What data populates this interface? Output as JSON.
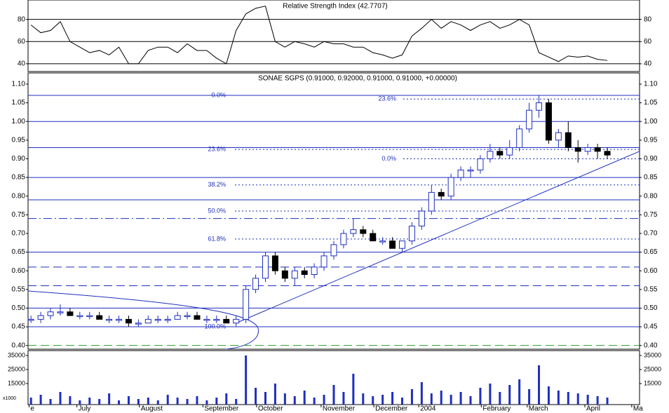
{
  "chart_data": [
    {
      "type": "line",
      "title": "Relative Strength Index (42.7707)",
      "color": "#000000",
      "values": [
        75,
        68,
        70,
        78,
        60,
        55,
        50,
        52,
        48,
        55,
        40,
        40,
        52,
        55,
        55,
        50,
        58,
        52,
        52,
        45,
        40,
        70,
        85,
        90,
        92,
        60,
        55,
        60,
        58,
        55,
        60,
        58,
        58,
        55,
        55,
        50,
        48,
        45,
        48,
        65,
        72,
        80,
        72,
        78,
        75,
        70,
        75,
        78,
        72,
        75,
        80,
        75,
        50,
        46,
        42,
        47,
        46,
        47,
        44,
        43
      ],
      "ylim": [
        33,
        97.5
      ],
      "yticks": [
        40,
        60,
        80
      ],
      "grid": true
    },
    {
      "type": "candlestick",
      "title": "SONAE SGPS (0.91000, 0.92000, 0.91000, 0.91000, +0.00000)",
      "open": [
        0.47,
        0.47,
        0.48,
        0.49,
        0.49,
        0.48,
        0.48,
        0.48,
        0.47,
        0.47,
        0.47,
        0.46,
        0.46,
        0.47,
        0.47,
        0.47,
        0.48,
        0.48,
        0.47,
        0.47,
        0.47,
        0.46,
        0.47,
        0.55,
        0.58,
        0.64,
        0.6,
        0.58,
        0.6,
        0.59,
        0.61,
        0.64,
        0.67,
        0.7,
        0.71,
        0.7,
        0.68,
        0.68,
        0.66,
        0.68,
        0.72,
        0.76,
        0.81,
        0.8,
        0.85,
        0.87,
        0.87,
        0.9,
        0.92,
        0.91,
        0.93,
        0.98,
        1.03,
        1.05,
        0.95,
        0.97,
        0.93,
        0.92,
        0.93,
        0.92
      ],
      "high": [
        0.48,
        0.49,
        0.5,
        0.51,
        0.5,
        0.49,
        0.49,
        0.49,
        0.48,
        0.48,
        0.48,
        0.47,
        0.48,
        0.48,
        0.48,
        0.49,
        0.49,
        0.49,
        0.48,
        0.48,
        0.48,
        0.48,
        0.56,
        0.59,
        0.65,
        0.65,
        0.61,
        0.61,
        0.61,
        0.62,
        0.65,
        0.68,
        0.71,
        0.74,
        0.72,
        0.71,
        0.69,
        0.69,
        0.68,
        0.73,
        0.77,
        0.83,
        0.82,
        0.86,
        0.88,
        0.88,
        0.91,
        0.94,
        0.93,
        0.95,
        0.99,
        1.05,
        1.07,
        1.06,
        0.98,
        1.0,
        0.95,
        0.94,
        0.94,
        0.93
      ],
      "low": [
        0.46,
        0.46,
        0.47,
        0.48,
        0.48,
        0.47,
        0.47,
        0.47,
        0.46,
        0.46,
        0.45,
        0.45,
        0.46,
        0.46,
        0.46,
        0.47,
        0.47,
        0.47,
        0.46,
        0.46,
        0.46,
        0.45,
        0.46,
        0.54,
        0.57,
        0.59,
        0.57,
        0.56,
        0.58,
        0.58,
        0.6,
        0.63,
        0.66,
        0.69,
        0.69,
        0.68,
        0.67,
        0.66,
        0.65,
        0.67,
        0.71,
        0.75,
        0.79,
        0.79,
        0.84,
        0.85,
        0.86,
        0.89,
        0.9,
        0.9,
        0.92,
        0.97,
        1.01,
        0.94,
        0.93,
        0.92,
        0.89,
        0.91,
        0.9,
        0.9
      ],
      "close": [
        0.47,
        0.48,
        0.49,
        0.49,
        0.48,
        0.48,
        0.48,
        0.47,
        0.47,
        0.47,
        0.46,
        0.46,
        0.47,
        0.47,
        0.47,
        0.48,
        0.48,
        0.47,
        0.47,
        0.47,
        0.46,
        0.47,
        0.55,
        0.58,
        0.64,
        0.6,
        0.58,
        0.6,
        0.59,
        0.61,
        0.64,
        0.67,
        0.7,
        0.71,
        0.7,
        0.68,
        0.68,
        0.66,
        0.68,
        0.72,
        0.76,
        0.81,
        0.8,
        0.85,
        0.87,
        0.87,
        0.9,
        0.92,
        0.91,
        0.93,
        0.98,
        1.03,
        1.05,
        0.95,
        0.97,
        0.93,
        0.92,
        0.93,
        0.92,
        0.91
      ],
      "up_color": "#1f2fbf",
      "down_color": "#000000",
      "ylim": [
        0.39,
        1.13
      ],
      "yticks": [
        {
          "value": 0.4,
          "label": "0.40"
        },
        {
          "value": 0.45,
          "label": "0.45"
        },
        {
          "value": 0.5,
          "label": "0.50"
        },
        {
          "value": 0.55,
          "label": "0.55"
        },
        {
          "value": 0.6,
          "label": "0.60"
        },
        {
          "value": 0.65,
          "label": "0.65"
        },
        {
          "value": 0.7,
          "label": "0.70"
        },
        {
          "value": 0.75,
          "label": "0.75"
        },
        {
          "value": 0.8,
          "label": "0.80"
        },
        {
          "value": 0.85,
          "label": "0.85"
        },
        {
          "value": 0.9,
          "label": "0.90"
        },
        {
          "value": 0.95,
          "label": "0.95"
        },
        {
          "value": 1.0,
          "label": "1.00"
        },
        {
          "value": 1.05,
          "label": "1.05"
        },
        {
          "value": 1.1,
          "label": "1.10"
        }
      ],
      "levels": [
        {
          "value": 1.07,
          "style": "solid"
        },
        {
          "value": 1.0,
          "style": "solid"
        },
        {
          "value": 0.93,
          "style": "solid"
        },
        {
          "value": 0.85,
          "style": "solid"
        },
        {
          "value": 0.79,
          "style": "solid"
        },
        {
          "value": 0.74,
          "style": "dashdot"
        },
        {
          "value": 0.65,
          "style": "solid"
        },
        {
          "value": 0.61,
          "style": "dashed"
        },
        {
          "value": 0.56,
          "style": "dashed"
        },
        {
          "value": 0.5,
          "style": "solid"
        },
        {
          "value": 0.45,
          "style": "solid"
        },
        {
          "value": 0.4,
          "style": "green"
        }
      ],
      "retracement_1": [
        {
          "label": "0.0%",
          "value": 1.07
        },
        {
          "label": "23.6%",
          "value": 0.925
        },
        {
          "label": "38.2%",
          "value": 0.83
        },
        {
          "label": "50.0%",
          "value": 0.76
        },
        {
          "label": "61.8%",
          "value": 0.685
        },
        {
          "label": "100.0%",
          "value": 0.45
        }
      ],
      "retracement_2": [
        {
          "label": "23.6%",
          "value": 1.06
        },
        {
          "label": "0.0%",
          "value": 0.9
        }
      ],
      "trendline": [
        [
          21,
          0.46
        ],
        [
          62.3,
          0.92
        ]
      ]
    },
    {
      "type": "bar",
      "color": "#1f2fbf",
      "unit_label": "x1000",
      "values": [
        5000,
        7000,
        4000,
        9000,
        6000,
        3000,
        5000,
        4000,
        8000,
        3000,
        6000,
        4000,
        5000,
        3000,
        7000,
        5000,
        4000,
        6000,
        3000,
        5000,
        8000,
        4000,
        35000,
        12000,
        9000,
        15000,
        8000,
        6000,
        10000,
        5000,
        7000,
        14000,
        9000,
        22000,
        8000,
        6000,
        7000,
        9000,
        5000,
        11000,
        16000,
        8000,
        10000,
        7000,
        9000,
        6000,
        12000,
        15000,
        9000,
        14000,
        18000,
        11000,
        28000,
        13000,
        10000,
        9000,
        8000,
        7000,
        6000,
        5000
      ],
      "ylim": [
        0,
        38500
      ],
      "yticks": [
        15000,
        25000,
        35000
      ],
      "xlim": [
        -0.3,
        62.3
      ],
      "xticks": [
        {
          "value": -0.2,
          "label": "e"
        },
        {
          "value": 4.7,
          "label": "July"
        },
        {
          "value": 11.1,
          "label": "August"
        },
        {
          "value": 17.6,
          "label": "September"
        },
        {
          "value": 23.1,
          "label": "October"
        },
        {
          "value": 29.7,
          "label": "November"
        },
        {
          "value": 35.1,
          "label": "December"
        },
        {
          "value": 39.7,
          "label": "2004"
        },
        {
          "value": 46.1,
          "label": "February"
        },
        {
          "value": 50.8,
          "label": "March"
        },
        {
          "value": 56.7,
          "label": "April"
        },
        {
          "value": 61.5,
          "label": "Ma"
        }
      ]
    }
  ]
}
